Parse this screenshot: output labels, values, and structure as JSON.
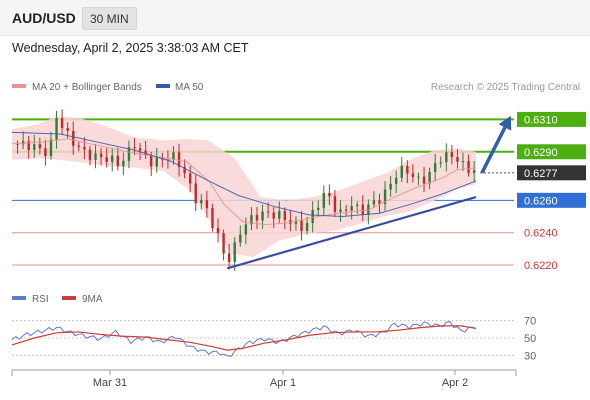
{
  "header": {
    "symbol": "AUD/USD",
    "interval": "30 MIN",
    "datetime": "Wednesday, April 2, 2025 3:38:03 AM CET"
  },
  "legend": {
    "ma20": "MA 20 + Bollinger Bands",
    "ma50": "MA 50",
    "copyright": "Research © 2025 Trading Central"
  },
  "rsi_legend": {
    "rsi": "RSI",
    "ma": "9MA"
  },
  "colors": {
    "candle_up": "#2e7d32",
    "candle_down": "#c62828",
    "ma20": "#ef8f8f",
    "ma50": "#3a5aa8",
    "bollinger_fill": "#f9d5d5",
    "resistance": "#4caf0f",
    "support_blue": "#2f6fd6",
    "support_red": "#f08a8a",
    "trendline": "#3a4f9c",
    "arrow": "#2f5fa8",
    "current_price_bg": "#333333",
    "rsi_line": "#5b7bd6",
    "rsi_ma": "#d33a3a"
  },
  "chart_data": [
    {
      "type": "line",
      "title": "AUD/USD 30 MIN",
      "ylim": [
        0.6212,
        0.6322
      ],
      "x_ticks": [
        "Mar 31",
        "Apr 1",
        "Apr 2"
      ],
      "price_levels": [
        {
          "value": 0.631,
          "label": "0.6310",
          "style": "resistance"
        },
        {
          "value": 0.629,
          "label": "0.6290",
          "style": "resistance"
        },
        {
          "value": 0.626,
          "label": "0.6260",
          "style": "support_blue"
        },
        {
          "value": 0.624,
          "label": "0.6240",
          "style": "support_red"
        },
        {
          "value": 0.622,
          "label": "0.6220",
          "style": "support_red"
        }
      ],
      "current_price": {
        "value": 0.6277,
        "label": "0.6277"
      },
      "series": [
        {
          "name": "Price",
          "points": [
            [
              0,
              0.6295
            ],
            [
              5,
              0.6294
            ],
            [
              10,
              0.6289
            ],
            [
              12,
              0.6312
            ],
            [
              15,
              0.63
            ],
            [
              19,
              0.629
            ],
            [
              22,
              0.6287
            ],
            [
              26,
              0.6286
            ],
            [
              29,
              0.6282
            ],
            [
              33,
              0.6295
            ],
            [
              35,
              0.6288
            ],
            [
              38,
              0.6283
            ],
            [
              43,
              0.6288
            ],
            [
              46,
              0.628
            ],
            [
              49,
              0.6262
            ],
            [
              52,
              0.6257
            ],
            [
              55,
              0.624
            ],
            [
              57,
              0.6228
            ],
            [
              59,
              0.6222
            ],
            [
              61,
              0.624
            ],
            [
              65,
              0.625
            ],
            [
              69,
              0.6252
            ],
            [
              73,
              0.625
            ],
            [
              76,
              0.6245
            ],
            [
              79,
              0.6243
            ],
            [
              82,
              0.6257
            ],
            [
              85,
              0.6265
            ],
            [
              88,
              0.625
            ],
            [
              91,
              0.6258
            ],
            [
              94,
              0.6253
            ],
            [
              97,
              0.6258
            ],
            [
              100,
              0.6262
            ],
            [
              103,
              0.6275
            ],
            [
              106,
              0.628
            ],
            [
              109,
              0.6272
            ],
            [
              112,
              0.6274
            ],
            [
              115,
              0.6286
            ],
            [
              119,
              0.6288
            ],
            [
              122,
              0.628
            ],
            [
              125,
              0.6278
            ]
          ]
        },
        {
          "name": "MA 50",
          "points": [
            [
              0,
              0.6302
            ],
            [
              13,
              0.6301
            ],
            [
              23,
              0.6296
            ],
            [
              33,
              0.6291
            ],
            [
              43,
              0.6284
            ],
            [
              53,
              0.6272
            ],
            [
              61,
              0.6263
            ],
            [
              71,
              0.6256
            ],
            [
              80,
              0.6251
            ],
            [
              89,
              0.625
            ],
            [
              99,
              0.6252
            ],
            [
              108,
              0.6258
            ],
            [
              116,
              0.6264
            ],
            [
              125,
              0.6272
            ]
          ]
        },
        {
          "name": "MA 20",
          "points": [
            [
              0,
              0.6295
            ],
            [
              8,
              0.6296
            ],
            [
              15,
              0.6298
            ],
            [
              23,
              0.6294
            ],
            [
              31,
              0.629
            ],
            [
              39,
              0.6287
            ],
            [
              47,
              0.6284
            ],
            [
              53,
              0.6272
            ],
            [
              57,
              0.6258
            ],
            [
              62,
              0.6247
            ],
            [
              68,
              0.6245
            ],
            [
              74,
              0.6246
            ],
            [
              80,
              0.6249
            ],
            [
              88,
              0.6252
            ],
            [
              96,
              0.6254
            ],
            [
              103,
              0.6262
            ],
            [
              109,
              0.6268
            ],
            [
              116,
              0.6274
            ],
            [
              120,
              0.6279
            ],
            [
              125,
              0.628
            ]
          ]
        },
        {
          "name": "Bollinger Upper",
          "points": [
            [
              0,
              0.6304
            ],
            [
              7,
              0.6307
            ],
            [
              12,
              0.6312
            ],
            [
              18,
              0.6311
            ],
            [
              25,
              0.6306
            ],
            [
              33,
              0.6299
            ],
            [
              41,
              0.6297
            ],
            [
              47,
              0.6298
            ],
            [
              53,
              0.6297
            ],
            [
              60,
              0.6286
            ],
            [
              67,
              0.6262
            ],
            [
              74,
              0.626
            ],
            [
              81,
              0.6262
            ],
            [
              88,
              0.6266
            ],
            [
              95,
              0.6272
            ],
            [
              101,
              0.6277
            ],
            [
              108,
              0.6286
            ],
            [
              114,
              0.6291
            ],
            [
              120,
              0.6292
            ],
            [
              125,
              0.629
            ]
          ]
        },
        {
          "name": "Bollinger Lower",
          "points": [
            [
              0,
              0.6285
            ],
            [
              7,
              0.6286
            ],
            [
              13,
              0.6285
            ],
            [
              20,
              0.6283
            ],
            [
              27,
              0.6281
            ],
            [
              34,
              0.628
            ],
            [
              41,
              0.6278
            ],
            [
              48,
              0.6266
            ],
            [
              54,
              0.6245
            ],
            [
              59,
              0.6227
            ],
            [
              65,
              0.6225
            ],
            [
              72,
              0.6235
            ],
            [
              79,
              0.6239
            ],
            [
              86,
              0.6241
            ],
            [
              93,
              0.6245
            ],
            [
              100,
              0.625
            ],
            [
              107,
              0.6253
            ],
            [
              114,
              0.626
            ],
            [
              120,
              0.6267
            ],
            [
              125,
              0.627
            ]
          ]
        }
      ],
      "trendline": {
        "from": [
          58,
          0.6218
        ],
        "to": [
          125,
          0.6262
        ]
      },
      "projection": {
        "from": [
          125,
          0.6277
        ],
        "to": [
          135,
          0.631
        ]
      }
    },
    {
      "type": "line",
      "title": "RSI",
      "ylim": [
        20,
        80
      ],
      "y_ticks": [
        70,
        50,
        30
      ],
      "series": [
        {
          "name": "RSI",
          "points": [
            [
              0,
              48
            ],
            [
              4,
              54
            ],
            [
              8,
              58
            ],
            [
              12,
              62
            ],
            [
              16,
              56
            ],
            [
              20,
              52
            ],
            [
              24,
              49
            ],
            [
              28,
              57
            ],
            [
              32,
              46
            ],
            [
              36,
              51
            ],
            [
              40,
              45
            ],
            [
              44,
              52
            ],
            [
              48,
              40
            ],
            [
              52,
              34
            ],
            [
              56,
              33
            ],
            [
              58,
              28
            ],
            [
              61,
              37
            ],
            [
              64,
              45
            ],
            [
              68,
              49
            ],
            [
              72,
              45
            ],
            [
              76,
              52
            ],
            [
              80,
              58
            ],
            [
              84,
              63
            ],
            [
              88,
              55
            ],
            [
              92,
              59
            ],
            [
              96,
              52
            ],
            [
              100,
              56
            ],
            [
              103,
              66
            ],
            [
              107,
              63
            ],
            [
              111,
              67
            ],
            [
              115,
              64
            ],
            [
              118,
              68
            ],
            [
              121,
              58
            ],
            [
              125,
              63
            ]
          ]
        },
        {
          "name": "9MA",
          "points": [
            [
              0,
              42
            ],
            [
              6,
              50
            ],
            [
              12,
              56
            ],
            [
              18,
              57
            ],
            [
              24,
              54
            ],
            [
              30,
              52
            ],
            [
              36,
              51
            ],
            [
              42,
              48
            ],
            [
              48,
              45
            ],
            [
              54,
              40
            ],
            [
              58,
              36
            ],
            [
              62,
              38
            ],
            [
              68,
              44
            ],
            [
              74,
              48
            ],
            [
              80,
              53
            ],
            [
              86,
              56
            ],
            [
              92,
              57
            ],
            [
              98,
              57
            ],
            [
              104,
              59
            ],
            [
              110,
              62
            ],
            [
              116,
              64
            ],
            [
              121,
              64
            ],
            [
              125,
              61
            ]
          ]
        }
      ]
    }
  ]
}
